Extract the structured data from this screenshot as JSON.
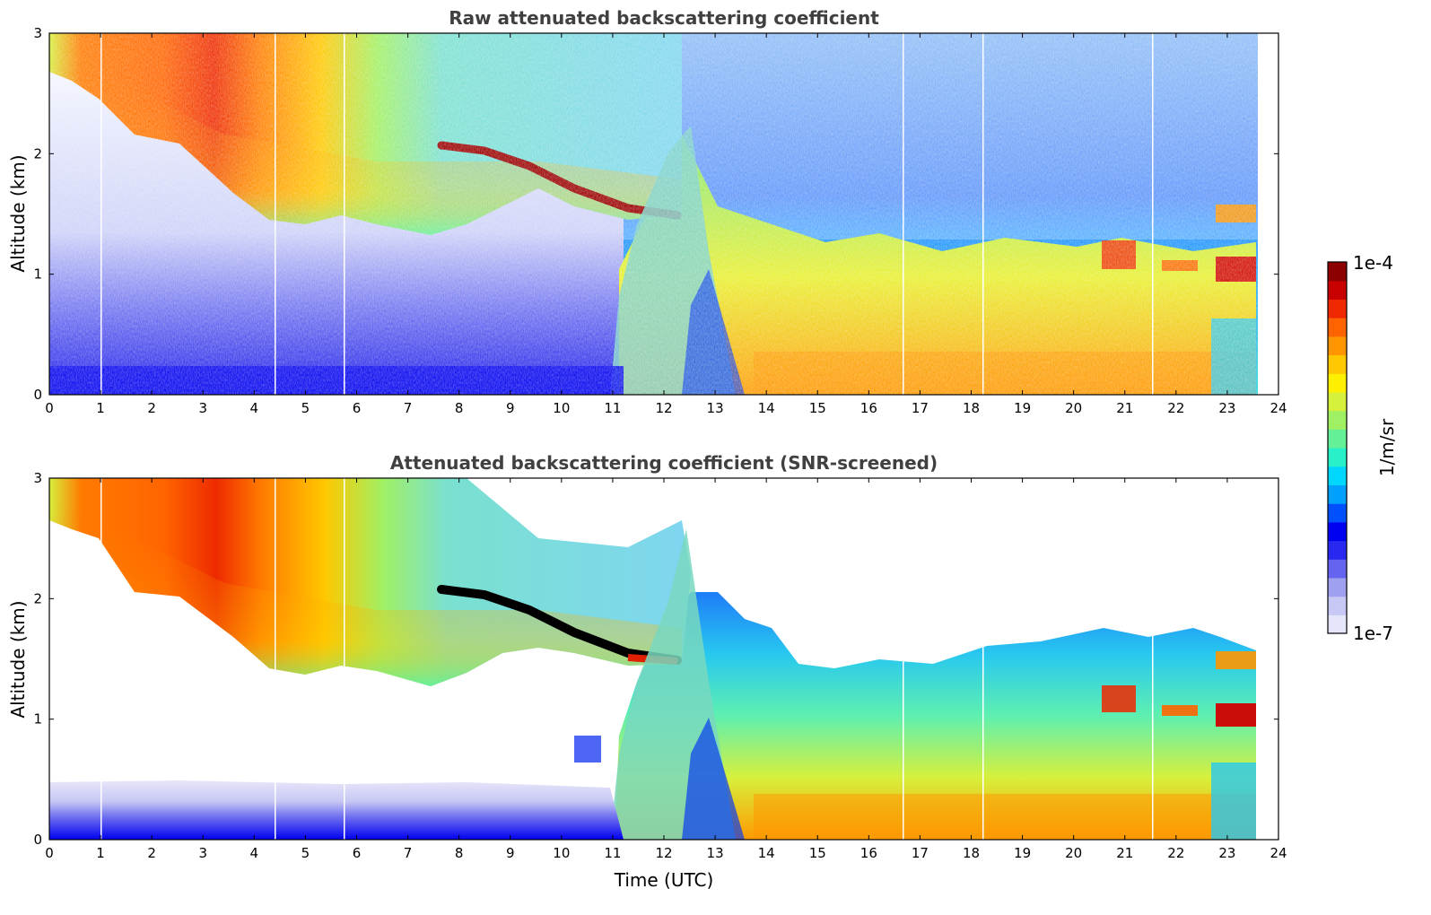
{
  "chart_data": [
    {
      "type": "heatmap",
      "title": "Raw attenuated backscattering coefficient",
      "xlabel": "",
      "ylabel": "Altitude (km)",
      "xlim": [
        0,
        24
      ],
      "ylim": [
        0,
        3
      ],
      "x_ticks": [
        "0",
        "1",
        "2",
        "3",
        "4",
        "5",
        "6",
        "7",
        "8",
        "9",
        "10",
        "11",
        "12",
        "13",
        "14",
        "15",
        "16",
        "17",
        "18",
        "19",
        "20",
        "21",
        "22",
        "23",
        "24"
      ],
      "y_ticks": [
        "0",
        "1",
        "2",
        "3"
      ],
      "data_end_time": 23.6,
      "features": [
        {
          "name": "aerosol layer top",
          "description": "upper aerosol/cloud layer top altitude (km) vs time (UTC)",
          "x": [
            0,
            1,
            2,
            3,
            4,
            5,
            6,
            7,
            8,
            9,
            10,
            11,
            12
          ],
          "y": [
            2.7,
            2.4,
            2.1,
            1.9,
            1.45,
            1.35,
            1.4,
            1.35,
            1.45,
            1.45,
            1.5,
            1.5,
            1.5
          ]
        },
        {
          "name": "elevated layer (dark red)",
          "x": [
            7.7,
            8.5,
            9.4,
            10.5,
            11.3,
            12.2
          ],
          "y": [
            2.05,
            2.0,
            1.85,
            1.6,
            1.5,
            1.48
          ]
        }
      ]
    },
    {
      "type": "heatmap",
      "title": "Attenuated backscattering coefficient (SNR-screened)",
      "xlabel": "Time (UTC)",
      "ylabel": "Altitude (km)",
      "xlim": [
        0,
        24
      ],
      "ylim": [
        0,
        3
      ],
      "x_ticks": [
        "0",
        "1",
        "2",
        "3",
        "4",
        "5",
        "6",
        "7",
        "8",
        "9",
        "10",
        "11",
        "12",
        "13",
        "14",
        "15",
        "16",
        "17",
        "18",
        "19",
        "20",
        "21",
        "22",
        "23",
        "24"
      ],
      "y_ticks": [
        "0",
        "1",
        "2",
        "3"
      ],
      "data_end_time": 23.6
    }
  ],
  "colorbar": {
    "label": "1/m/sr",
    "max_label": "1e-4",
    "min_label": "1e-7",
    "scale": "log",
    "vmin": 1e-07,
    "vmax": 0.0001,
    "colors": [
      "#e6e6fa",
      "#c8c8f5",
      "#a0a0f0",
      "#6464f0",
      "#2828f0",
      "#0000f0",
      "#0050ff",
      "#00a0ff",
      "#00d7ff",
      "#28f0c8",
      "#64f096",
      "#a0f064",
      "#d7f03c",
      "#fff000",
      "#ffc800",
      "#ff9600",
      "#ff6400",
      "#f02800",
      "#c80000",
      "#8c0000"
    ]
  }
}
